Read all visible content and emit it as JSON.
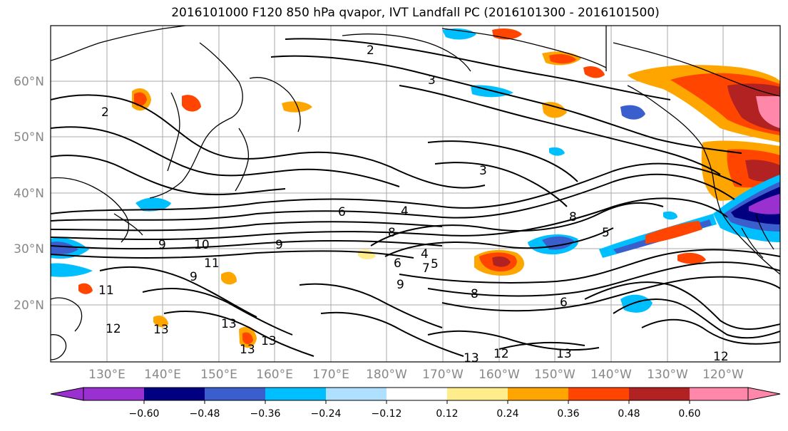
{
  "title": "2016101000 F120 850 hPa qvapor, IVT Landfall PC (2016101300 - 2016101500)",
  "latitude_labels": [
    "60°N",
    "50°N",
    "40°N",
    "30°N",
    "20°N"
  ],
  "longitude_labels": [
    "130°E",
    "140°E",
    "150°E",
    "160°E",
    "170°E",
    "180°W",
    "170°W",
    "160°W",
    "150°W",
    "140°W",
    "130°W",
    "120°W"
  ],
  "contour_labels": [
    "2",
    "3",
    "3",
    "2",
    "6",
    "4",
    "8",
    "5",
    "9",
    "10",
    "9",
    "9",
    "11",
    "11",
    "12",
    "13",
    "13",
    "13",
    "13",
    "12",
    "13",
    "13",
    "12",
    "6",
    "8",
    "9",
    "8",
    "7",
    "6",
    "4",
    "5"
  ],
  "colorbar": {
    "colors": [
      "#9b30d0",
      "#000080",
      "#3a5fcd",
      "#00bfff",
      "#b0e0ff",
      "#ffffff",
      "#ffec8b",
      "#ffa500",
      "#ff4500",
      "#b22222",
      "#ff88aa"
    ],
    "tick_labels": [
      "−0.60",
      "−0.48",
      "−0.36",
      "−0.24",
      "−0.12",
      "0.12",
      "0.24",
      "0.36",
      "0.48",
      "0.60"
    ]
  }
}
